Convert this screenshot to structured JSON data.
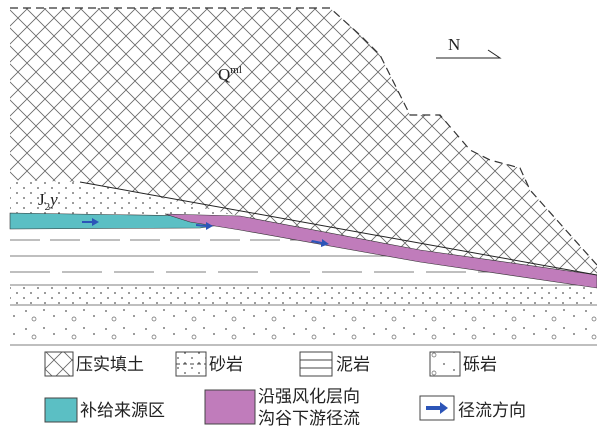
{
  "section": {
    "fill_label": {
      "base": "Q",
      "sup": "ml"
    },
    "strata_label": {
      "base": "J",
      "sub": "2",
      "suffix": "y"
    },
    "north": "N"
  },
  "legend": {
    "items": [
      {
        "label": "压实填土"
      },
      {
        "label": "砂岩"
      },
      {
        "label": "泥岩"
      },
      {
        "label": "砾岩"
      },
      {
        "label": "补给来源区"
      },
      {
        "lines": [
          "沿强风化层向",
          "沟谷下游径流"
        ]
      },
      {
        "label": "径流方向"
      }
    ]
  }
}
